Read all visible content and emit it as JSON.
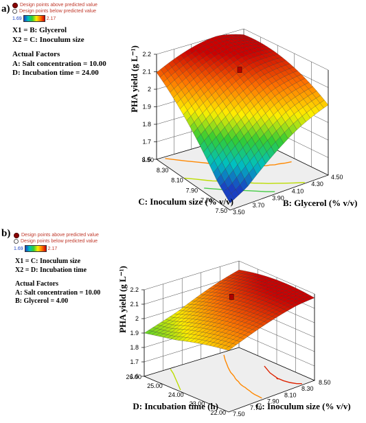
{
  "legend": {
    "above_label": "Design points above predicted value",
    "below_label": "Design points below predicted value",
    "scale_min": "1.69",
    "scale_max": "2.17"
  },
  "panels": [
    {
      "label": "a)",
      "x1_text": "X1 = B: Glycerol",
      "x2_text": "X2 = C: Inoculum size",
      "actual_factors_heading": "Actual Factors",
      "factor_1": "A: Salt concentration = 10.00",
      "factor_2": "D: Incubation time = 24.00"
    },
    {
      "label": "b)",
      "x1_text": "X1 = C: Inoculum size",
      "x2_text": "X2 = D: Incubation time",
      "actual_factors_heading": "Actual Factors",
      "factor_1": "A: Salt concentration = 10.00",
      "factor_2": "B: Glycerol = 4.00"
    }
  ],
  "chart_data": [
    {
      "type": "surface",
      "title": "",
      "zlabel": "PHA yield (g L⁻¹)",
      "z_ticks": [
        "1.6",
        "1.7",
        "1.8",
        "1.9",
        "2",
        "2.1",
        "2.2"
      ],
      "zlim": [
        1.6,
        2.2
      ],
      "x_axis": {
        "label": "B: Glycerol (% v/v)",
        "ticks": [
          "3.50",
          "3.70",
          "3.90",
          "4.10",
          "4.30",
          "4.50"
        ],
        "range": [
          3.5,
          4.5
        ]
      },
      "y_axis": {
        "label": "C: Inoculum size (% v/v)",
        "ticks": [
          "7.50",
          "7.70",
          "7.90",
          "8.10",
          "8.30",
          "8.50"
        ],
        "range": [
          7.5,
          8.5
        ]
      },
      "surface_corner_values": {
        "x_min_y_max": 2.06,
        "x_max_y_max": 2.04,
        "x_max_y_min": 1.96,
        "x_min_y_min": 1.64
      },
      "surface_peak": {
        "x": 4.2,
        "y": 8.2,
        "z": 2.17
      },
      "design_point_above": {
        "x": 4.0,
        "y": 8.0,
        "z": 2.17
      },
      "contours": [
        "orange ellipse centered near B=4.1, C=8.2",
        "green arc near C=7.6"
      ]
    },
    {
      "type": "surface",
      "title": "",
      "zlabel": "PHA yield (g L⁻¹)",
      "z_ticks": [
        "1.6",
        "1.7",
        "1.8",
        "1.9",
        "2",
        "2.1",
        "2.2"
      ],
      "zlim": [
        1.6,
        2.2
      ],
      "x_axis": {
        "label": "C: Inoculum size (% v/v)",
        "ticks": [
          "7.50",
          "7.70",
          "7.90",
          "8.10",
          "8.30",
          "8.50"
        ],
        "range": [
          7.5,
          8.5
        ]
      },
      "y_axis": {
        "label": "D: Incubation time (h)",
        "ticks": [
          "22.00",
          "23.00",
          "24.00",
          "25.00",
          "26.00"
        ],
        "range": [
          22,
          26
        ]
      },
      "surface_corner_values": {
        "x_min_y_max": 1.9,
        "x_max_y_max": 2.12,
        "x_max_y_min": 2.1,
        "x_min_y_min": 2.02
      },
      "surface_peak": {
        "x": 8.3,
        "y": 23.0,
        "z": 2.17
      },
      "design_point_above": {
        "x": 8.0,
        "y": 24.0,
        "z": 2.17
      },
      "contours": [
        "red ellipse centered near C=8.3, D=23",
        "orange arcs",
        "yellow/green arcs near D=25-26"
      ]
    }
  ]
}
